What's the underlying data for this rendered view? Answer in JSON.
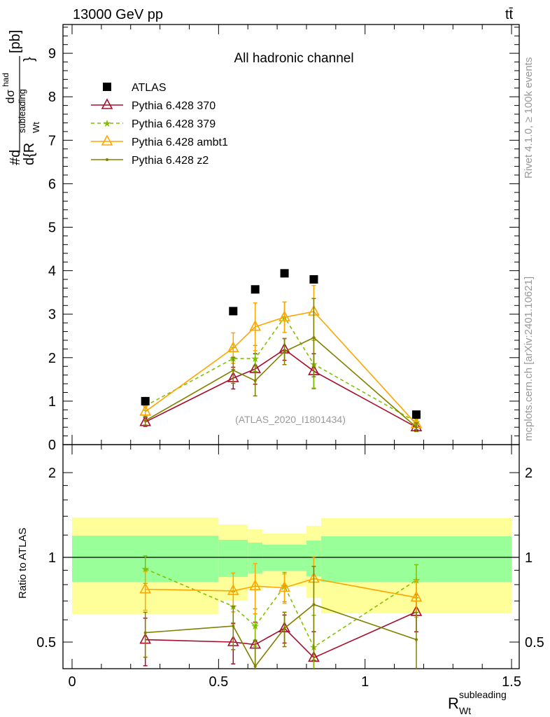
{
  "header": {
    "energy_label": "13000 GeV pp",
    "process_label": "tt̄",
    "side_info": "Rivet 4.1.0, ≥ 100k events",
    "side_source": "mcplots.cern.ch [arXiv:2401.10621]"
  },
  "chart_data": {
    "type": "line",
    "title": "All hadronic channel",
    "analysis_label": "(ATLAS_2020_I1801434)",
    "ylabel": "#d dσ^had / d{R_Wt^subleading} [pb]",
    "ylabel_parts": {
      "num": "dσ",
      "num_sup": "had",
      "den": "d{R",
      "den_sup": "subleading",
      "den_sub": "Wt",
      "den_close": "}",
      "prefix": "#d",
      "unit": "[pb]"
    },
    "xlabel": "R",
    "xlabel_sup": "subleading",
    "xlabel_sub": "Wt",
    "ratio_ylabel": "Ratio to ATLAS",
    "xlim": [
      -0.03,
      1.53
    ],
    "ylim": [
      0,
      9.65
    ],
    "ratio_ylim": [
      0.4,
      2.52
    ],
    "ratio_scale": "log",
    "x_ticks": [
      "0",
      "0.5",
      "1",
      "1.5"
    ],
    "y_ticks": [
      "0",
      "1",
      "2",
      "3",
      "4",
      "5",
      "6",
      "7",
      "8",
      "9"
    ],
    "ratio_ticks": [
      "0.5",
      "1",
      "2"
    ],
    "bin_edges": [
      0,
      0.5,
      0.6,
      0.65,
      0.8,
      0.85,
      1.5
    ],
    "x": [
      0.25,
      0.55,
      0.625,
      0.725,
      0.825,
      1.175
    ],
    "legend_position": "top-left",
    "data": {
      "name": "ATLAS",
      "values": [
        1.0,
        3.07,
        3.57,
        3.94,
        3.8,
        0.69
      ]
    },
    "ratio_band_inner": {
      "color": "#99ff99",
      "low": [
        0.818,
        0.852,
        0.877,
        0.897,
        0.857,
        0.818
      ],
      "high": [
        1.194,
        1.154,
        1.128,
        1.109,
        1.147,
        1.188
      ]
    },
    "ratio_band_outer": {
      "color": "#ffff99",
      "low": [
        0.629,
        0.701,
        0.768,
        0.791,
        0.717,
        0.632
      ],
      "high": [
        1.386,
        1.309,
        1.258,
        1.215,
        1.294,
        1.378
      ]
    },
    "series": [
      {
        "name": "Pythia 6.428 370",
        "color": "#a50f2a",
        "marker": "triangle",
        "dashed": false,
        "values": [
          0.52,
          1.53,
          1.74,
          2.19,
          1.69,
          0.4
        ],
        "errors": [
          0.1,
          0.25,
          0.35,
          0.25,
          0.4,
          0.06
        ],
        "ratio": [
          0.51,
          0.5,
          0.49,
          0.56,
          0.44,
          0.64
        ]
      },
      {
        "name": "Pythia 6.428 379",
        "color": "#80c000",
        "marker": "star",
        "dashed": true,
        "values": [
          0.89,
          1.98,
          1.98,
          2.93,
          1.85,
          0.52
        ],
        "errors": [
          0.1,
          0.25,
          0.3,
          0.35,
          0.55,
          0.07
        ],
        "ratio": [
          0.91,
          0.67,
          0.57,
          0.79,
          0.48,
          0.83
        ]
      },
      {
        "name": "Pythia 6.428 ambt1",
        "color": "#ffa500",
        "marker": "triangle",
        "dashed": false,
        "values": [
          0.76,
          2.22,
          2.71,
          2.93,
          3.06,
          0.47
        ],
        "errors": [
          0.12,
          0.35,
          0.55,
          0.35,
          0.6,
          0.07
        ],
        "ratio": [
          0.77,
          0.76,
          0.79,
          0.78,
          0.84,
          0.72
        ]
      },
      {
        "name": "Pythia 6.428 z2",
        "color": "#808000",
        "marker": "dot",
        "dashed": false,
        "values": [
          0.55,
          1.71,
          1.47,
          2.14,
          2.46,
          0.4
        ],
        "errors": [
          0.1,
          0.3,
          0.35,
          0.3,
          0.9,
          0.1
        ],
        "ratio": [
          0.54,
          0.57,
          0.41,
          0.56,
          0.68,
          0.51
        ]
      }
    ]
  }
}
